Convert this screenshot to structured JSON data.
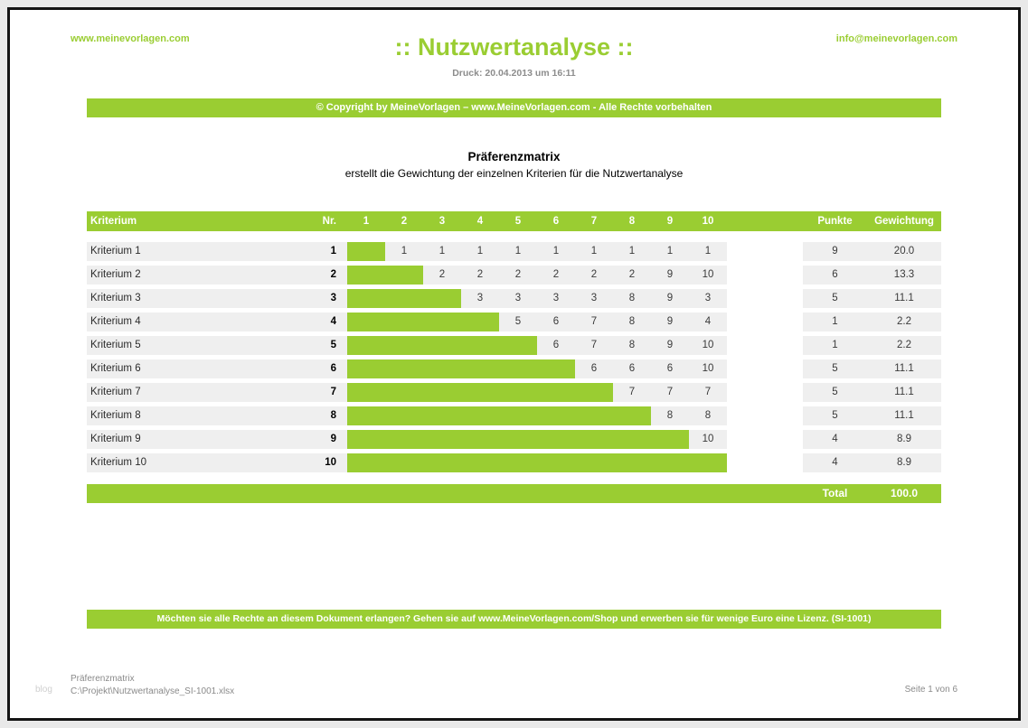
{
  "colors": {
    "accent": "#9ACD32",
    "row_bg": "#EFEFEF"
  },
  "header": {
    "website": "www.meinevorlagen.com",
    "title": ":: Nutzwertanalyse ::",
    "print_info": "Druck: 20.04.2013 um 16:11",
    "email": "info@meinevorlagen.com",
    "copyright_banner": "© Copyright by MeineVorlagen – www.MeineVorlagen.com - Alle Rechte vorbehalten"
  },
  "section": {
    "title": "Präferenzmatrix",
    "subtitle": "erstellt die Gewichtung der einzelnen Kriterien für die Nutzwertanalyse"
  },
  "table": {
    "headers": {
      "kriterium": "Kriterium",
      "nr": "Nr.",
      "columns": [
        "1",
        "2",
        "3",
        "4",
        "5",
        "6",
        "7",
        "8",
        "9",
        "10"
      ],
      "punkte": "Punkte",
      "gewichtung": "Gewichtung"
    },
    "rows": [
      {
        "kriterium": "Kriterium 1",
        "nr": "1",
        "bar_span": 1,
        "values": [
          "1",
          "1",
          "1",
          "1",
          "1",
          "1",
          "1",
          "1",
          "1"
        ],
        "punkte": "9",
        "gewichtung": "20.0"
      },
      {
        "kriterium": "Kriterium 2",
        "nr": "2",
        "bar_span": 2,
        "values": [
          "2",
          "2",
          "2",
          "2",
          "2",
          "2",
          "9",
          "10"
        ],
        "punkte": "6",
        "gewichtung": "13.3"
      },
      {
        "kriterium": "Kriterium 3",
        "nr": "3",
        "bar_span": 3,
        "values": [
          "3",
          "3",
          "3",
          "3",
          "8",
          "9",
          "3"
        ],
        "punkte": "5",
        "gewichtung": "11.1"
      },
      {
        "kriterium": "Kriterium 4",
        "nr": "4",
        "bar_span": 4,
        "values": [
          "5",
          "6",
          "7",
          "8",
          "9",
          "4"
        ],
        "punkte": "1",
        "gewichtung": "2.2"
      },
      {
        "kriterium": "Kriterium 5",
        "nr": "5",
        "bar_span": 5,
        "values": [
          "6",
          "7",
          "8",
          "9",
          "10"
        ],
        "punkte": "1",
        "gewichtung": "2.2"
      },
      {
        "kriterium": "Kriterium 6",
        "nr": "6",
        "bar_span": 6,
        "values": [
          "6",
          "6",
          "6",
          "10"
        ],
        "punkte": "5",
        "gewichtung": "11.1"
      },
      {
        "kriterium": "Kriterium 7",
        "nr": "7",
        "bar_span": 7,
        "values": [
          "7",
          "7",
          "7"
        ],
        "punkte": "5",
        "gewichtung": "11.1"
      },
      {
        "kriterium": "Kriterium 8",
        "nr": "8",
        "bar_span": 8,
        "values": [
          "8",
          "8"
        ],
        "punkte": "5",
        "gewichtung": "11.1"
      },
      {
        "kriterium": "Kriterium 9",
        "nr": "9",
        "bar_span": 9,
        "values": [
          "10"
        ],
        "punkte": "4",
        "gewichtung": "8.9"
      },
      {
        "kriterium": "Kriterium 10",
        "nr": "10",
        "bar_span": 10,
        "values": [],
        "punkte": "4",
        "gewichtung": "8.9"
      }
    ],
    "total": {
      "label": "Total",
      "value": "100.0"
    }
  },
  "license_banner": "Möchten sie alle Rechte an diesem Dokument erlangen? Gehen sie auf www.MeineVorlagen.com/Shop und erwerben sie für wenige Euro eine Lizenz. (SI-1001)",
  "footer": {
    "watermark": "blog",
    "doc_name": "Präferenzmatrix",
    "file_path": "C:\\Projekt\\Nutzwertanalyse_SI-1001.xlsx",
    "page_info": "Seite 1 von 6"
  }
}
